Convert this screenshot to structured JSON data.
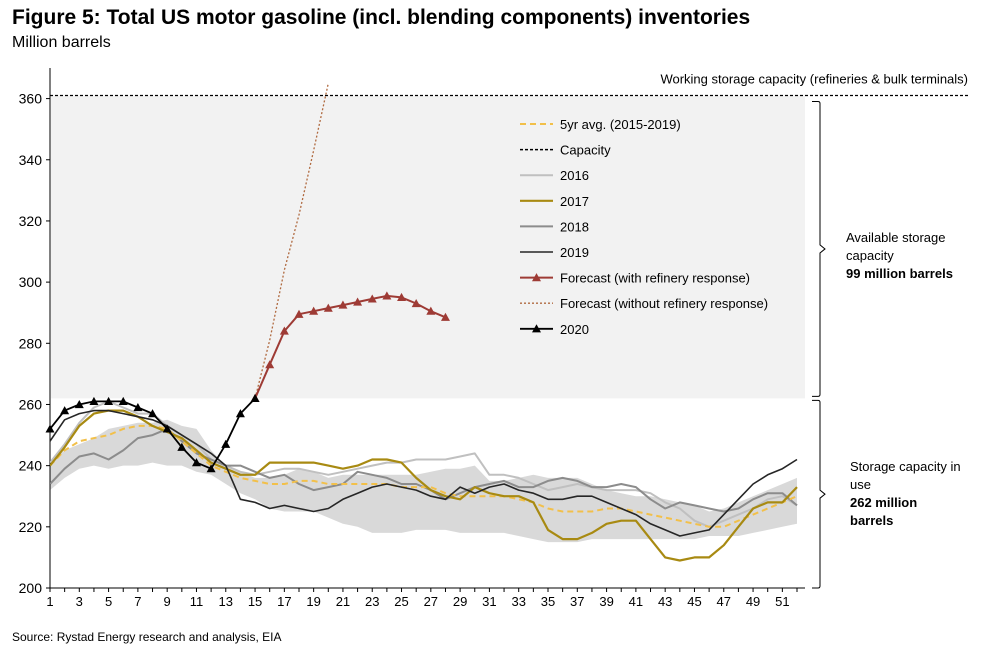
{
  "title": "Figure 5: Total US motor gasoline (incl. blending components) inventories",
  "subtitle": "Million barrels",
  "source": "Source: Rystad Energy research and analysis, EIA",
  "capacity_label": "Working storage capacity (refineries & bulk terminals)",
  "brackets": {
    "available": {
      "lines": [
        "Available storage",
        "capacity"
      ],
      "bold": "99 million barrels"
    },
    "in_use": {
      "lines": [
        "Storage capacity in",
        "use"
      ],
      "bold_lines": [
        "262 million",
        "barrels"
      ]
    }
  },
  "colors": {
    "range_band": "#d9d9d9",
    "available_area": "#f2f2f2",
    "avg": "#f2c04a",
    "capacity": "#000000",
    "s2016": "#c0c0c0",
    "s2017": "#a88a12",
    "s2018": "#8c8c8c",
    "s2019": "#262626",
    "forecast_ref": "#9e3b35",
    "forecast_noref": "#b06a40",
    "s2020": "#000000"
  },
  "chart_data": {
    "type": "line",
    "xlabel": "",
    "ylabel": "",
    "xlim": [
      1,
      52
    ],
    "ylim": [
      200,
      370
    ],
    "x_ticks": [
      1,
      3,
      5,
      7,
      9,
      11,
      13,
      15,
      17,
      19,
      21,
      23,
      25,
      27,
      29,
      31,
      33,
      35,
      37,
      39,
      41,
      43,
      45,
      47,
      49,
      51
    ],
    "y_ticks": [
      200,
      220,
      240,
      260,
      280,
      300,
      320,
      340,
      360
    ],
    "capacity": 361,
    "available_storage": 99,
    "in_use": 262,
    "range_band": {
      "upper": [
        241,
        245,
        247,
        249,
        252,
        253,
        254,
        254,
        255,
        253,
        252,
        245,
        240,
        238,
        236,
        236,
        237,
        239,
        238,
        236,
        237,
        237,
        237,
        237,
        237,
        237,
        238,
        239,
        239,
        240,
        235,
        235,
        236,
        237,
        236,
        236,
        236,
        234,
        232,
        231,
        230,
        230,
        229,
        228,
        227,
        225,
        226,
        228,
        230,
        232,
        234,
        236
      ],
      "lower": [
        232,
        236,
        239,
        240,
        239,
        240,
        240,
        241,
        240,
        240,
        238,
        237,
        234,
        231,
        229,
        226,
        225,
        225,
        225,
        223,
        221,
        220,
        218,
        218,
        218,
        219,
        219,
        219,
        218,
        218,
        218,
        218,
        217,
        216,
        215,
        215,
        215,
        216,
        216,
        216,
        216,
        216,
        216,
        216,
        216,
        217,
        217,
        217,
        218,
        219,
        220,
        221
      ]
    },
    "series": [
      {
        "name": "5yr avg. (2015-2019)",
        "key": "avg",
        "style": "dashed",
        "values": [
          240,
          245,
          248,
          249,
          250,
          252,
          253,
          253,
          252,
          248,
          244,
          240,
          238,
          236,
          235,
          234,
          234,
          235,
          235,
          234,
          234,
          234,
          234,
          234,
          233,
          233,
          233,
          231,
          230,
          230,
          230,
          230,
          229,
          228,
          226,
          225,
          225,
          225,
          226,
          226,
          225,
          224,
          223,
          222,
          221,
          220,
          220,
          222,
          224,
          226,
          228,
          230
        ]
      },
      {
        "name": "Capacity",
        "key": "capacity",
        "style": "dashed-black"
      },
      {
        "name": "2016",
        "key": "s2016",
        "style": "solid",
        "values": [
          241,
          247,
          254,
          259,
          261,
          259,
          257,
          257,
          253,
          250,
          247,
          242,
          240,
          238,
          237,
          238,
          239,
          239,
          238,
          237,
          238,
          239,
          240,
          241,
          241,
          242,
          242,
          242,
          243,
          244,
          237,
          237,
          236,
          234,
          232,
          233,
          234,
          233,
          232,
          232,
          232,
          231,
          228,
          226,
          222,
          220,
          222,
          224,
          226,
          229,
          230,
          227
        ]
      },
      {
        "name": "2017",
        "key": "s2017",
        "style": "solid",
        "values": [
          240,
          246,
          253,
          257,
          258,
          258,
          256,
          253,
          251,
          249,
          245,
          241,
          239,
          237,
          237,
          241,
          241,
          241,
          241,
          240,
          239,
          240,
          242,
          242,
          241,
          236,
          232,
          230,
          229,
          233,
          231,
          230,
          230,
          228,
          219,
          216,
          216,
          218,
          221,
          222,
          222,
          216,
          210,
          209,
          210,
          210,
          214,
          220,
          226,
          228,
          228,
          233
        ]
      },
      {
        "name": "2018",
        "key": "s2018",
        "style": "solid",
        "values": [
          234,
          239,
          243,
          244,
          242,
          245,
          249,
          250,
          252,
          248,
          244,
          242,
          240,
          240,
          238,
          236,
          237,
          234,
          232,
          233,
          234,
          238,
          237,
          236,
          234,
          234,
          232,
          229,
          231,
          233,
          234,
          235,
          233,
          233,
          235,
          236,
          235,
          233,
          233,
          234,
          233,
          229,
          226,
          228,
          227,
          226,
          225,
          226,
          229,
          231,
          231,
          227
        ]
      },
      {
        "name": "2019",
        "key": "s2019",
        "style": "solid",
        "values": [
          248,
          255,
          257,
          258,
          258,
          257,
          256,
          255,
          253,
          250,
          247,
          244,
          240,
          229,
          228,
          226,
          227,
          226,
          225,
          226,
          229,
          231,
          233,
          234,
          233,
          232,
          230,
          229,
          233,
          231,
          233,
          234,
          232,
          231,
          229,
          229,
          230,
          230,
          228,
          226,
          224,
          221,
          219,
          217,
          218,
          219,
          224,
          229,
          234,
          237,
          239,
          242
        ]
      },
      {
        "name": "Forecast (with refinery response)",
        "key": "forecast_ref",
        "style": "triangle",
        "x": [
          15,
          16,
          17,
          18,
          19,
          20,
          21,
          22,
          23,
          24,
          25,
          26,
          27,
          28
        ],
        "values": [
          262,
          273,
          284,
          289.5,
          290.5,
          291.5,
          292.5,
          293.5,
          294.5,
          295.5,
          295,
          293,
          290.5,
          288.5
        ]
      },
      {
        "name": "Forecast (without refinery response)",
        "key": "forecast_noref",
        "style": "dotted",
        "x": [
          15,
          16,
          17,
          18,
          19,
          20
        ],
        "values": [
          262,
          281,
          304,
          322,
          343,
          365
        ]
      },
      {
        "name": "2020",
        "key": "s2020",
        "style": "triangle",
        "x": [
          1,
          2,
          3,
          4,
          5,
          6,
          7,
          8,
          9,
          10,
          11,
          12,
          13,
          14,
          15
        ],
        "values": [
          252,
          258,
          260,
          261,
          261,
          261,
          259,
          257,
          252,
          246,
          241,
          239,
          247,
          257,
          262
        ]
      }
    ],
    "legend_position": "top-right"
  }
}
